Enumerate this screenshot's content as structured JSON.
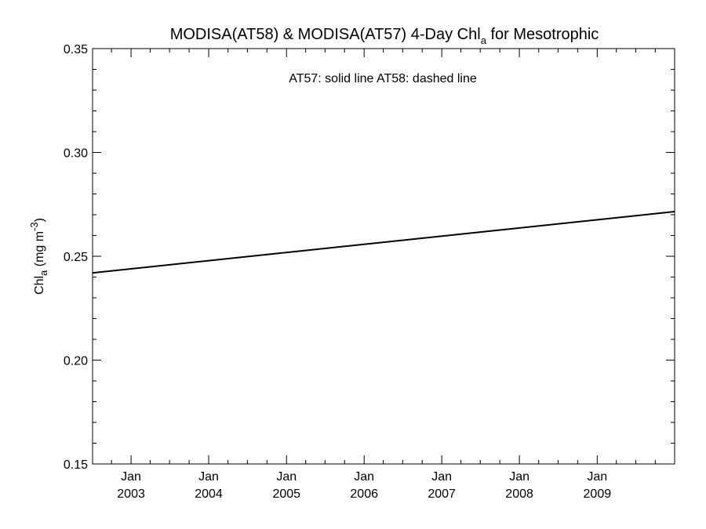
{
  "chart_data": {
    "type": "line",
    "title": {
      "prefix": "MODISA(AT58) & MODISA(AT57) 4-Day Chl",
      "subscript": "a",
      "suffix": " for Mesotrophic"
    },
    "ylabel": {
      "base": "Chl",
      "subscript": "a",
      "units_prefix": " (mg m",
      "superscript": "-3",
      "units_suffix": ")"
    },
    "annotation": "AT57: solid line   AT58: dashed line",
    "ylim": [
      0.15,
      0.35
    ],
    "yticks": [
      {
        "value": 0.15,
        "label": "0.15"
      },
      {
        "value": 0.2,
        "label": "0.20"
      },
      {
        "value": 0.25,
        "label": "0.25"
      },
      {
        "value": 0.3,
        "label": "0.30"
      },
      {
        "value": 0.35,
        "label": "0.35"
      }
    ],
    "xlim": [
      "2002-07-04",
      "2009-12-31"
    ],
    "xticks": [
      {
        "date": "2003-01-01",
        "month": "Jan",
        "year": "2003"
      },
      {
        "date": "2004-01-01",
        "month": "Jan",
        "year": "2004"
      },
      {
        "date": "2005-01-01",
        "month": "Jan",
        "year": "2005"
      },
      {
        "date": "2006-01-01",
        "month": "Jan",
        "year": "2006"
      },
      {
        "date": "2007-01-01",
        "month": "Jan",
        "year": "2007"
      },
      {
        "date": "2008-01-01",
        "month": "Jan",
        "year": "2008"
      },
      {
        "date": "2009-01-01",
        "month": "Jan",
        "year": "2009"
      }
    ],
    "series": [
      {
        "style": "solid",
        "color": "#000000",
        "x": [
          "2002-07-04",
          "2009-12-31"
        ],
        "y": [
          0.242,
          0.2715
        ]
      }
    ]
  }
}
